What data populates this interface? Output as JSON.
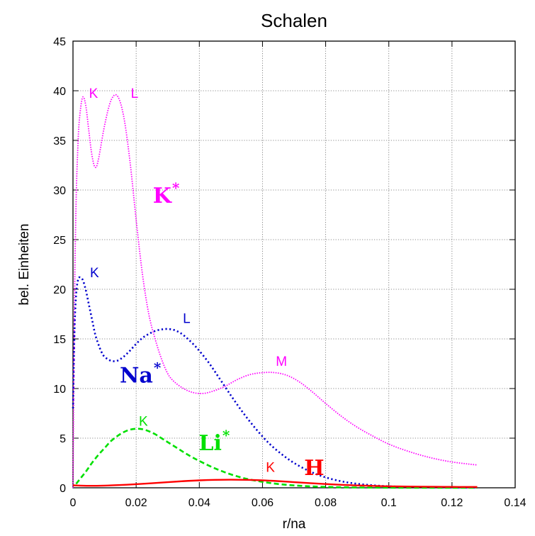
{
  "chart_data": {
    "type": "line",
    "title": "Schalen",
    "xlabel": "r/na",
    "ylabel": "bel. Einheiten",
    "xlim": [
      0,
      0.14
    ],
    "ylim": [
      0,
      45
    ],
    "xticks": [
      0,
      0.02,
      0.04,
      0.06,
      0.08,
      0.1,
      0.12,
      0.14
    ],
    "xtick_labels": [
      "0",
      "0.02",
      "0.04",
      "0.06",
      "0.08",
      "0.1",
      "0.12",
      "0.14"
    ],
    "yticks": [
      0,
      5,
      10,
      15,
      20,
      25,
      30,
      35,
      40,
      45
    ],
    "ytick_labels": [
      "0",
      "5",
      "10",
      "15",
      "20",
      "25",
      "30",
      "35",
      "40",
      "45"
    ],
    "grid": true,
    "series": [
      {
        "element": "K",
        "color": "#ff00ff",
        "style": "dotted-fine",
        "shell_labels": [
          "K",
          "L",
          "M"
        ],
        "x": [
          0,
          0.0005,
          0.001,
          0.0015,
          0.002,
          0.003,
          0.004,
          0.005,
          0.006,
          0.007,
          0.008,
          0.01,
          0.012,
          0.014,
          0.016,
          0.018,
          0.02,
          0.022,
          0.024,
          0.026,
          0.028,
          0.03,
          0.032,
          0.035,
          0.038,
          0.041,
          0.044,
          0.048,
          0.052,
          0.056,
          0.06,
          0.064,
          0.068,
          0.072,
          0.076,
          0.08,
          0.085,
          0.09,
          0.095,
          0.1,
          0.105,
          0.11,
          0.115,
          0.12,
          0.125,
          0.128
        ],
        "y": [
          0,
          19,
          29,
          34,
          37,
          39.3,
          38.6,
          36,
          33.5,
          32.3,
          33,
          36.5,
          39,
          39.5,
          37.5,
          33,
          27,
          21.5,
          17.5,
          15,
          13,
          11.5,
          10.7,
          10,
          9.6,
          9.5,
          9.7,
          10.2,
          10.9,
          11.4,
          11.6,
          11.6,
          11.3,
          10.6,
          9.6,
          8.5,
          7.2,
          6.1,
          5.2,
          4.4,
          3.8,
          3.3,
          2.9,
          2.6,
          2.4,
          2.3
        ]
      },
      {
        "element": "Na",
        "color": "#0000cd",
        "style": "dotted",
        "shell_labels": [
          "K",
          "L"
        ],
        "x": [
          0,
          0.0005,
          0.001,
          0.0015,
          0.002,
          0.003,
          0.004,
          0.005,
          0.006,
          0.007,
          0.008,
          0.009,
          0.01,
          0.012,
          0.014,
          0.016,
          0.018,
          0.02,
          0.022,
          0.024,
          0.026,
          0.028,
          0.03,
          0.032,
          0.034,
          0.036,
          0.038,
          0.04,
          0.043,
          0.046,
          0.05,
          0.054,
          0.058,
          0.062,
          0.066,
          0.07,
          0.075,
          0.08,
          0.085,
          0.09,
          0.095,
          0.1,
          0.105,
          0.11,
          0.115,
          0.12,
          0.125,
          0.128
        ],
        "y": [
          8,
          16,
          19.5,
          20.8,
          21.2,
          21,
          20,
          18.5,
          17,
          15.5,
          14.5,
          13.7,
          13.2,
          12.8,
          12.8,
          13.2,
          13.8,
          14.5,
          15.1,
          15.5,
          15.8,
          15.95,
          16,
          15.9,
          15.6,
          15.1,
          14.5,
          13.8,
          12.6,
          11.2,
          9.3,
          7.5,
          5.9,
          4.5,
          3.4,
          2.5,
          1.65,
          1.05,
          0.65,
          0.4,
          0.25,
          0.15,
          0.1,
          0.06,
          0.04,
          0.03,
          0.02,
          0.02
        ]
      },
      {
        "element": "Li",
        "color": "#00e000",
        "style": "dashed",
        "shell_labels": [
          "K"
        ],
        "x": [
          0.001,
          0.002,
          0.004,
          0.006,
          0.008,
          0.01,
          0.012,
          0.014,
          0.016,
          0.018,
          0.02,
          0.022,
          0.024,
          0.026,
          0.028,
          0.03,
          0.033,
          0.036,
          0.04,
          0.045,
          0.05,
          0.055,
          0.06,
          0.065,
          0.07,
          0.075,
          0.08,
          0.085,
          0.09,
          0.095,
          0.1,
          0.11,
          0.12,
          0.128
        ],
        "y": [
          0.4,
          0.8,
          1.6,
          2.5,
          3.3,
          4,
          4.7,
          5.2,
          5.6,
          5.85,
          5.95,
          5.9,
          5.7,
          5.4,
          5,
          4.6,
          4,
          3.4,
          2.7,
          1.95,
          1.35,
          0.9,
          0.6,
          0.38,
          0.24,
          0.15,
          0.09,
          0.05,
          0.03,
          0.02,
          0.01,
          0,
          0,
          0
        ]
      },
      {
        "element": "H",
        "color": "#ff0000",
        "style": "solid",
        "shell_labels": [
          "K"
        ],
        "x": [
          0,
          0.005,
          0.01,
          0.015,
          0.02,
          0.025,
          0.03,
          0.035,
          0.04,
          0.045,
          0.05,
          0.055,
          0.06,
          0.065,
          0.07,
          0.075,
          0.08,
          0.085,
          0.09,
          0.095,
          0.1,
          0.105,
          0.11,
          0.115,
          0.12,
          0.125,
          0.128
        ],
        "y": [
          0.25,
          0.2,
          0.22,
          0.28,
          0.36,
          0.46,
          0.57,
          0.67,
          0.75,
          0.8,
          0.82,
          0.8,
          0.75,
          0.67,
          0.57,
          0.47,
          0.38,
          0.3,
          0.24,
          0.19,
          0.15,
          0.13,
          0.11,
          0.1,
          0.09,
          0.08,
          0.08
        ]
      }
    ],
    "annotations": [
      {
        "text": "K",
        "x": 0.0065,
        "y": 39.3,
        "color": "#ff00ff",
        "kind": "shell"
      },
      {
        "text": "L",
        "x": 0.0195,
        "y": 39.3,
        "color": "#ff00ff",
        "kind": "shell"
      },
      {
        "text": "M",
        "x": 0.066,
        "y": 12.3,
        "color": "#ff00ff",
        "kind": "shell"
      },
      {
        "text": "K",
        "x": 0.0068,
        "y": 21.2,
        "color": "#0000cd",
        "kind": "shell"
      },
      {
        "text": "L",
        "x": 0.036,
        "y": 16.6,
        "color": "#0000cd",
        "kind": "shell"
      },
      {
        "text": "K",
        "x": 0.0223,
        "y": 6.25,
        "color": "#00e000",
        "kind": "shell"
      },
      {
        "text": "K",
        "x": 0.0625,
        "y": 1.6,
        "color": "#ff0000",
        "kind": "shell"
      },
      {
        "text": "K",
        "sup": "*",
        "x": 0.0253,
        "y": 28.7,
        "color": "#ff00ff",
        "kind": "element"
      },
      {
        "text": "Na",
        "sup": "*",
        "x": 0.0148,
        "y": 10.6,
        "color": "#0000cd",
        "kind": "element"
      },
      {
        "text": "Li",
        "sup": "*",
        "x": 0.0398,
        "y": 3.8,
        "color": "#00e000",
        "kind": "element"
      },
      {
        "text": "H",
        "x": 0.0732,
        "y": 1.3,
        "color": "#ff0000",
        "kind": "element"
      }
    ]
  }
}
